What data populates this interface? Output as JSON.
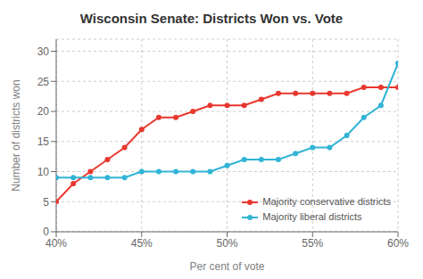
{
  "chart_data": {
    "type": "line",
    "title": "Wisconsin Senate: Districts Won vs. Vote",
    "xlabel": "Per cent of vote",
    "ylabel": "Number of districts won",
    "x": [
      0.4,
      0.41,
      0.42,
      0.43,
      0.44,
      0.45,
      0.46,
      0.47,
      0.48,
      0.49,
      0.5,
      0.51,
      0.52,
      0.53,
      0.54,
      0.55,
      0.56,
      0.57,
      0.58,
      0.59,
      0.6
    ],
    "series": [
      {
        "name": "Majority conservative districts",
        "color": "#e8382e",
        "marker": "circle",
        "values": [
          5,
          8,
          10,
          12,
          14,
          17,
          19,
          19,
          20,
          21,
          21,
          21,
          22,
          23,
          23,
          23,
          23,
          23,
          24,
          24,
          24
        ]
      },
      {
        "name": "Majority liberal districts",
        "color": "#31b4d5",
        "marker": "circle",
        "values": [
          9,
          9,
          9,
          9,
          9,
          10,
          10,
          10,
          10,
          10,
          11,
          12,
          12,
          12,
          13,
          14,
          14,
          16,
          19,
          21,
          28
        ]
      }
    ],
    "xlim": [
      0.4,
      0.6
    ],
    "ylim": [
      0,
      32
    ],
    "xticks": [
      {
        "value": 0.4,
        "label": "40%"
      },
      {
        "value": 0.45,
        "label": "45%"
      },
      {
        "value": 0.5,
        "label": "50%"
      },
      {
        "value": 0.55,
        "label": "55%"
      },
      {
        "value": 0.6,
        "label": "60%"
      }
    ],
    "yticks": [
      0,
      5,
      10,
      15,
      20,
      25,
      30
    ],
    "grid": true,
    "legend": "lower right"
  }
}
